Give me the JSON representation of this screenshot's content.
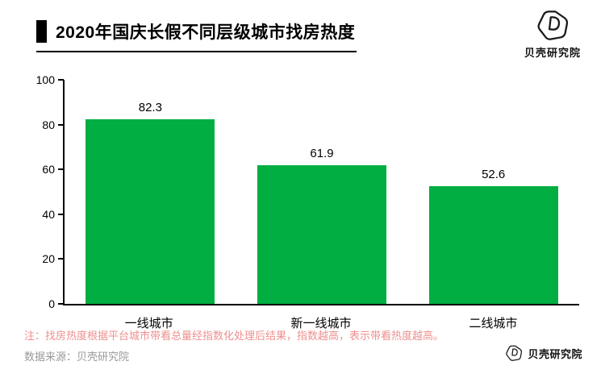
{
  "header": {
    "title": "2020年国庆长假不同层级城市找房热度",
    "logo_text": "贝壳研究院"
  },
  "chart_data": {
    "type": "bar",
    "title": "2020年国庆长假不同层级城市找房热度",
    "categories": [
      "一线城市",
      "新一线城市",
      "二线城市"
    ],
    "values": [
      82.3,
      61.9,
      52.6
    ],
    "xlabel": "",
    "ylabel": "",
    "ylim": [
      0,
      100
    ],
    "yticks": [
      0,
      20,
      40,
      60,
      80,
      100
    ],
    "grid": false,
    "legend": null,
    "bar_color": "#00ae42"
  },
  "footer": {
    "note": "注：找房热度根据平台城市带看总量经指数化处理后结果，指数越高，表示带看热度越高。",
    "source": "数据来源：贝壳研究院",
    "logo_text": "贝壳研究院"
  },
  "colors": {
    "bar": "#00ae42",
    "note": "#ef8f8f",
    "source": "#999999",
    "axis": "#000000"
  }
}
